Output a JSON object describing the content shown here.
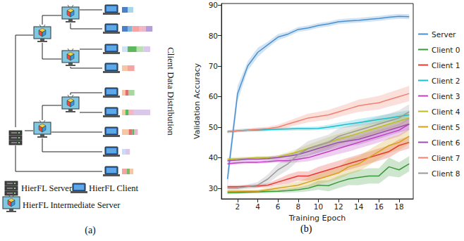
{
  "diagram": {
    "panel_label": "(a)",
    "side_label": "Client Data Distribution",
    "legend": [
      {
        "icon": "server",
        "text": "HierFL Server"
      },
      {
        "icon": "client",
        "text": "HierFL Client"
      },
      {
        "icon": "intermediate",
        "text": "HierFL Intermediate Server"
      }
    ],
    "nodes": [
      {
        "kind": "server",
        "parent": null
      },
      {
        "kind": "intermediate",
        "parent": 0
      },
      {
        "kind": "intermediate",
        "parent": 1
      },
      {
        "kind": "client",
        "parent": 2,
        "distribution": [
          {
            "color": "#4a7fc9",
            "value": 5
          },
          {
            "color": "#a9d6e5",
            "value": 5
          }
        ]
      },
      {
        "kind": "client",
        "parent": 2,
        "distribution": [
          {
            "color": "#4a7fc9",
            "value": 5
          },
          {
            "color": "#7fb8d8",
            "value": 4
          },
          {
            "color": "#f5a3a3",
            "value": 6
          },
          {
            "color": "#f4b6c2",
            "value": 6
          },
          {
            "color": "#b39ddb",
            "value": 6
          }
        ]
      },
      {
        "kind": "intermediate",
        "parent": 1
      },
      {
        "kind": "client",
        "parent": 5,
        "distribution": [
          {
            "color": "#cfe3f5",
            "value": 5
          },
          {
            "color": "#5cb85c",
            "value": 8
          },
          {
            "color": "#b8e0b0",
            "value": 6
          },
          {
            "color": "#d9c8ec",
            "value": 6
          }
        ]
      },
      {
        "kind": "client",
        "parent": 5,
        "distribution": [
          {
            "color": "#f7c6a3",
            "value": 5
          },
          {
            "color": "#f5a3a3",
            "value": 6
          }
        ]
      },
      {
        "kind": "intermediate",
        "parent": 0
      },
      {
        "kind": "intermediate",
        "parent": 8
      },
      {
        "kind": "client",
        "parent": 9,
        "distribution": [
          {
            "color": "#f7c6a3",
            "value": 3
          },
          {
            "color": "#e07070",
            "value": 3
          },
          {
            "color": "#a7d8a0",
            "value": 5
          }
        ]
      },
      {
        "kind": "client",
        "parent": 9,
        "distribution": [
          {
            "color": "#f7c6a3",
            "value": 3
          },
          {
            "color": "#5cb85c",
            "value": 3
          },
          {
            "color": "#f4b6c2",
            "value": 4
          },
          {
            "color": "#d9c8ec",
            "value": 15
          }
        ]
      },
      {
        "kind": "client",
        "parent": 8,
        "distribution": [
          {
            "color": "#f7c6a3",
            "value": 6
          },
          {
            "color": "#e07070",
            "value": 3
          },
          {
            "color": "#5cb85c",
            "value": 2
          },
          {
            "color": "#e8b4d0",
            "value": 3
          }
        ]
      },
      {
        "kind": "client",
        "parent": 8,
        "distribution": [
          {
            "color": "#c9dcf5",
            "value": 3
          },
          {
            "color": "#d9c8ec",
            "value": 4
          }
        ]
      },
      {
        "kind": "client",
        "parent": 0,
        "distribution": [
          {
            "color": "#f5a3a3",
            "value": 4
          },
          {
            "color": "#7fb86a",
            "value": 3
          },
          {
            "color": "#f7c6a3",
            "value": 3
          }
        ]
      }
    ]
  },
  "chart_data": {
    "type": "line",
    "annotations": [
      "(b)"
    ],
    "x_label": "Training Epoch",
    "y_label": "Validation Accuracy",
    "x": [
      1,
      2,
      3,
      4,
      5,
      6,
      7,
      8,
      9,
      10,
      11,
      12,
      13,
      14,
      15,
      16,
      17,
      18,
      19
    ],
    "xlim": [
      0.4,
      19.4
    ],
    "xticks": [
      2,
      4,
      6,
      8,
      10,
      12,
      14,
      16,
      18
    ],
    "ylim": [
      26.5,
      90.5
    ],
    "yticks": [
      30,
      40,
      50,
      60,
      70,
      80,
      90
    ],
    "grid": false,
    "legend": "right",
    "series": [
      {
        "name": "Server",
        "color": "#4a90d0",
        "values": [
          33,
          61,
          70,
          74.5,
          77,
          79.5,
          80.5,
          82,
          82.5,
          83.3,
          83.8,
          84.5,
          84.8,
          85,
          85.3,
          85.6,
          86,
          86.3,
          86.2
        ],
        "lower": [
          30,
          58.5,
          68.5,
          73,
          76,
          78.5,
          79.7,
          81.2,
          81.7,
          82.5,
          83,
          83.7,
          84,
          84.2,
          84.5,
          84.8,
          85.2,
          85.5,
          85.4
        ],
        "upper": [
          36,
          63.5,
          71.5,
          76,
          78,
          80.5,
          81.3,
          82.8,
          83.3,
          84.1,
          84.6,
          85.3,
          85.6,
          85.8,
          86.1,
          86.4,
          86.8,
          87.1,
          87
        ]
      },
      {
        "name": "Client 0",
        "color": "#3a9a3a",
        "values": [
          28.5,
          28.6,
          28.7,
          28.8,
          28.9,
          29,
          29.2,
          29.5,
          30,
          31,
          30.8,
          32,
          33,
          33.5,
          34,
          34,
          37,
          36,
          38
        ],
        "lower": [
          28,
          28.1,
          28.2,
          28.3,
          28.4,
          28.5,
          28.5,
          28.7,
          29,
          29.5,
          29,
          30,
          31,
          31,
          31.5,
          31.5,
          34,
          33.5,
          35.5
        ],
        "upper": [
          29,
          29.1,
          29.2,
          29.3,
          29.4,
          29.5,
          29.9,
          30.3,
          31,
          32.5,
          32.6,
          34,
          35,
          36,
          36.5,
          36.5,
          40,
          38.5,
          40.5
        ]
      },
      {
        "name": "Client 1",
        "color": "#e8382f",
        "values": [
          30.5,
          30.5,
          30.6,
          30.7,
          31,
          32,
          33,
          34,
          34,
          35,
          36,
          37,
          38,
          39,
          40,
          41,
          42,
          44,
          45
        ],
        "lower": [
          30,
          30,
          30.1,
          30.2,
          30.3,
          31,
          31.5,
          32.5,
          32.5,
          33,
          34,
          35,
          36,
          37,
          38,
          39,
          40,
          42,
          43
        ],
        "upper": [
          31,
          31,
          31.1,
          31.2,
          31.7,
          33,
          34.5,
          35.5,
          35.5,
          37,
          38,
          39,
          40,
          41,
          42,
          43,
          44,
          46,
          47
        ]
      },
      {
        "name": "Client 2",
        "color": "#17becf",
        "values": [
          48.5,
          48.8,
          49,
          49,
          49.2,
          49.3,
          49.4,
          49.5,
          49.5,
          49.6,
          50,
          50.5,
          51,
          51.5,
          52,
          52.5,
          53,
          53.5,
          54
        ],
        "lower": [
          48,
          48.3,
          48.5,
          48.5,
          48.7,
          48.8,
          48.8,
          48.9,
          48.9,
          49,
          49.2,
          49.5,
          50,
          50.3,
          50.8,
          51.2,
          51.7,
          52,
          52.5
        ],
        "upper": [
          49,
          49.3,
          49.5,
          49.5,
          49.7,
          49.8,
          50,
          50.1,
          50.1,
          50.2,
          50.8,
          51.5,
          52,
          52.7,
          53.2,
          53.8,
          54.3,
          55,
          55.5
        ]
      },
      {
        "name": "Client 3",
        "color": "#c040c0",
        "values": [
          38,
          38.3,
          38.5,
          38.5,
          38.7,
          39,
          39,
          39.5,
          40,
          41,
          42,
          43,
          44,
          45,
          46,
          47,
          48,
          49,
          51
        ],
        "lower": [
          37.5,
          37.8,
          38,
          38,
          38.2,
          38.4,
          38.3,
          38.5,
          38.8,
          39.5,
          40.3,
          41.2,
          42,
          43,
          44,
          45,
          46,
          47,
          49
        ],
        "upper": [
          38.5,
          38.8,
          39,
          39,
          39.2,
          39.6,
          39.7,
          40.5,
          41.2,
          42.5,
          43.7,
          44.8,
          46,
          47,
          48,
          49,
          50,
          51,
          53
        ]
      },
      {
        "name": "Client 4",
        "color": "#bcbd22",
        "values": [
          39.5,
          39.7,
          39.8,
          40,
          40,
          40.2,
          41,
          42,
          43,
          44,
          45,
          46,
          47,
          48,
          49,
          50,
          51,
          52,
          53
        ],
        "lower": [
          39,
          39.2,
          39.3,
          39.5,
          39.5,
          39.6,
          40.2,
          41,
          41.8,
          42.5,
          43.3,
          44.2,
          45.2,
          46,
          47,
          48,
          49,
          50,
          51
        ],
        "upper": [
          40,
          40.2,
          40.3,
          40.5,
          40.5,
          40.8,
          41.8,
          43,
          44.2,
          45.5,
          46.7,
          47.8,
          48.8,
          50,
          51,
          52,
          53,
          54,
          55
        ]
      },
      {
        "name": "Client 5",
        "color": "#d4a017",
        "values": [
          29,
          29,
          29,
          29,
          29.5,
          30,
          30.5,
          31,
          32,
          33,
          34,
          35,
          37,
          38,
          40,
          42,
          44,
          45,
          47
        ],
        "lower": [
          28.5,
          28.5,
          28.5,
          28.5,
          28.8,
          29.2,
          29.5,
          29.8,
          30.5,
          31.3,
          32,
          33,
          34.5,
          35.5,
          37.5,
          39.5,
          41.5,
          42.5,
          44.5
        ],
        "upper": [
          29.5,
          29.5,
          29.5,
          29.5,
          30.2,
          30.8,
          31.5,
          32.2,
          33.5,
          34.7,
          36,
          37,
          39.5,
          40.5,
          42.5,
          44.5,
          46.5,
          47.5,
          49.5
        ]
      },
      {
        "name": "Client 6",
        "color": "#9a4fb0",
        "values": [
          39,
          39.2,
          39.5,
          39.5,
          39.7,
          40,
          40.5,
          41,
          42,
          43,
          44,
          45,
          45.5,
          46,
          47,
          48,
          49,
          50,
          51
        ],
        "lower": [
          38.5,
          38.7,
          39,
          39,
          39.1,
          39.3,
          39.6,
          40,
          40.8,
          41.6,
          42.5,
          43.3,
          43.8,
          44.2,
          45.2,
          46.2,
          47.2,
          48.2,
          49.2
        ],
        "upper": [
          39.5,
          39.7,
          40,
          40,
          40.3,
          40.7,
          41.4,
          42,
          43.2,
          44.4,
          45.5,
          46.7,
          47.2,
          47.8,
          48.8,
          49.8,
          50.8,
          51.8,
          52.8
        ]
      },
      {
        "name": "Client 7",
        "color": "#f08070",
        "values": [
          48.5,
          48.8,
          49,
          49.3,
          49.5,
          50,
          51,
          52,
          53,
          53.5,
          54,
          55,
          56,
          57,
          57.5,
          58,
          59,
          60,
          61
        ],
        "lower": [
          48,
          48.3,
          48.5,
          48.7,
          48.9,
          49.2,
          50,
          50.8,
          51.6,
          52,
          52.4,
          53.3,
          54.2,
          55,
          55.4,
          55.8,
          56.7,
          57.6,
          58.5
        ],
        "upper": [
          49,
          49.3,
          49.5,
          49.9,
          50.1,
          50.8,
          52,
          53.2,
          54.4,
          55,
          55.6,
          56.7,
          57.8,
          59,
          59.6,
          60.2,
          61.3,
          62.4,
          63.5
        ]
      },
      {
        "name": "Client 8",
        "color": "#999999",
        "values": [
          30,
          30,
          30.5,
          31,
          33,
          36,
          38,
          41,
          43,
          44,
          45,
          47,
          48,
          49,
          50,
          51,
          52,
          53,
          55
        ],
        "lower": [
          29.5,
          29.5,
          29.8,
          30,
          31.5,
          34,
          36,
          39,
          40.5,
          41.5,
          42.5,
          44.5,
          45.5,
          46.5,
          47.5,
          48.5,
          49.5,
          50.5,
          52.5
        ],
        "upper": [
          30.5,
          30.5,
          31.2,
          32,
          34.5,
          38,
          40,
          43,
          45.5,
          46.5,
          47.5,
          49.5,
          50.5,
          51.5,
          52.5,
          53.5,
          54.5,
          55.5,
          57.5
        ]
      }
    ]
  }
}
